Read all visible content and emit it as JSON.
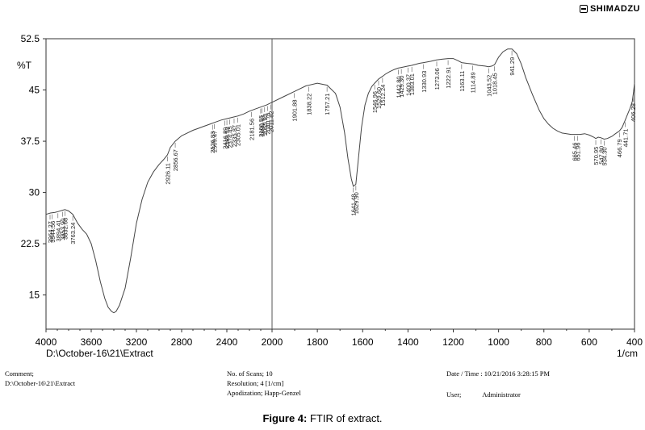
{
  "brand": "SHIMADZU",
  "chart_data": {
    "type": "line",
    "ylabel": "%T",
    "xlabel": "1/cm",
    "file_label": "D:\\October-16\\21\\Extract",
    "xlim": [
      4000,
      400
    ],
    "ylim": [
      10,
      52.5
    ],
    "x_ticks": [
      4000,
      3600,
      3200,
      2800,
      2400,
      2000,
      1800,
      1600,
      1400,
      1200,
      1000,
      800,
      600,
      400
    ],
    "x_tick_labels": [
      "4000",
      "3600",
      "3200",
      "2800",
      "2400",
      "2000",
      "1800",
      "1600",
      "1400",
      "1200",
      "1000",
      "800",
      "600",
      "400"
    ],
    "y_ticks": [
      15,
      22.5,
      30,
      37.5,
      45,
      52.5
    ],
    "y_tick_labels": [
      "15",
      "22.5",
      "30",
      "37.5",
      "45",
      "52.5"
    ],
    "series": [
      {
        "x": [
          4000,
          3960,
          3920,
          3894,
          3854,
          3833,
          3800,
          3763,
          3720,
          3680,
          3640,
          3600,
          3560,
          3520,
          3480,
          3450,
          3420,
          3400,
          3380,
          3350,
          3300,
          3250,
          3200,
          3150,
          3100,
          3050,
          3000,
          2960,
          2926,
          2900,
          2857,
          2800,
          2750,
          2700,
          2650,
          2600,
          2550,
          2500,
          2450,
          2400,
          2350,
          2300,
          2250,
          2200,
          2150,
          2100,
          2050,
          2000,
          1950,
          1900,
          1850,
          1800,
          1757,
          1720,
          1700,
          1680,
          1665,
          1650,
          1641,
          1630,
          1620,
          1605,
          1590,
          1575,
          1560,
          1547,
          1530,
          1512,
          1500,
          1480,
          1460,
          1443,
          1429,
          1400,
          1383,
          1350,
          1331,
          1300,
          1273,
          1250,
          1223,
          1200,
          1180,
          1163,
          1140,
          1115,
          1090,
          1060,
          1044,
          1030,
          1018,
          1000,
          980,
          960,
          941,
          920,
          900,
          880,
          850,
          820,
          800,
          780,
          760,
          740,
          720,
          700,
          680,
          665,
          652,
          640,
          620,
          600,
          580,
          571,
          560,
          548,
          534,
          520,
          500,
          484,
          467,
          455,
          442,
          430,
          420,
          410,
          404,
          400
        ],
        "y": [
          26.8,
          27.0,
          27.1,
          27.2,
          27.4,
          27.5,
          27.3,
          26.8,
          25.5,
          24.6,
          23.9,
          22.5,
          20.0,
          17.0,
          14.5,
          13.2,
          12.6,
          12.4,
          12.6,
          13.5,
          16.0,
          20.5,
          25.5,
          29.0,
          31.5,
          33.0,
          34.1,
          34.8,
          35.5,
          36.6,
          37.5,
          38.3,
          38.7,
          39.1,
          39.4,
          39.7,
          40.0,
          40.3,
          40.6,
          40.8,
          41.0,
          41.2,
          41.5,
          41.9,
          42.2,
          42.5,
          42.8,
          43.2,
          44.0,
          44.8,
          45.6,
          46.0,
          45.7,
          44.5,
          42.5,
          38.8,
          35.0,
          32.0,
          30.9,
          31.2,
          34.5,
          39.5,
          42.8,
          44.5,
          45.5,
          46.0,
          46.6,
          47.0,
          47.3,
          47.7,
          48.0,
          48.2,
          48.3,
          48.5,
          48.6,
          48.9,
          49.0,
          49.2,
          49.4,
          49.5,
          49.6,
          49.6,
          49.3,
          49.0,
          48.9,
          48.8,
          48.6,
          48.5,
          48.4,
          48.5,
          48.7,
          49.8,
          50.6,
          51.0,
          51.0,
          50.3,
          48.8,
          46.8,
          44.3,
          42.0,
          40.8,
          40.0,
          39.4,
          39.0,
          38.7,
          38.6,
          38.5,
          38.5,
          38.5,
          38.5,
          38.6,
          38.4,
          38.1,
          37.9,
          38.1,
          38.0,
          37.8,
          37.9,
          38.2,
          38.6,
          39.0,
          39.5,
          40.5,
          41.5,
          42.3,
          43.3,
          44.8,
          46.0
        ]
      }
    ],
    "peak_labels": [
      "3964.27",
      "3944.56",
      "3894.41",
      "3853.90",
      "3832.68",
      "3763.24",
      "2926.11",
      "2856.67",
      "2526.83",
      "2509.47",
      "2416.89",
      "2399.53",
      "2374.45",
      "2335.87",
      "2305.01",
      "2181.56",
      "2100.55",
      "2090.91",
      "2065.83",
      "2040.76",
      "2011.82",
      "1901.88",
      "1838.22",
      "1757.21",
      "1641.48",
      "1629.90",
      "1546.96",
      "1529.60",
      "1512.24",
      "1442.80",
      "1429.30",
      "1400.37",
      "1383.01",
      "1330.93",
      "1273.06",
      "1222.91",
      "1163.11",
      "1114.89",
      "1043.52",
      "1018.45",
      "941.29",
      "665.46",
      "651.96",
      "570.95",
      "547.80",
      "534.30",
      "466.79",
      "441.71",
      "406.28"
    ]
  },
  "footer": {
    "comment_label": "Comment;",
    "comment_value": "D:\\October-16\\21\\Extract",
    "scans": "No. of Scans; 10",
    "resolution": "Resolution;   4 [1/cm]",
    "apodization": "Apodization;  Happ-Genzel",
    "datetime": "Date / Time :  10/21/2016 3:28:15 PM",
    "user_label": "User;",
    "user_value": "Administrator"
  },
  "caption": {
    "prefix": "Figure 4:",
    "text": " FTIR of extract."
  }
}
